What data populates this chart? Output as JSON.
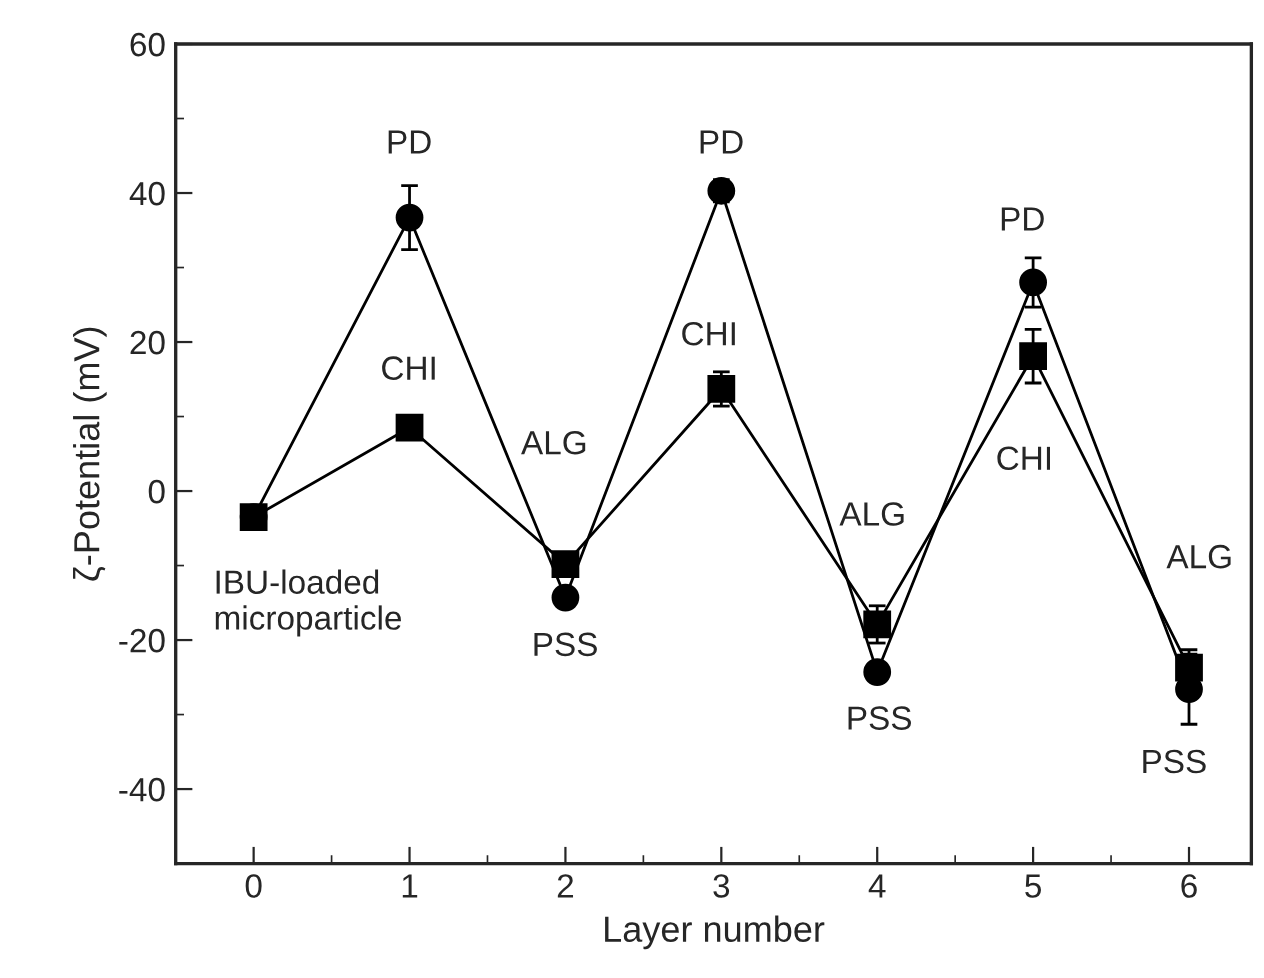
{
  "chart_data": {
    "type": "line",
    "xlabel": "Layer number",
    "ylabel": "ζ-Potential (mV)",
    "xlim": [
      -0.5,
      6.4
    ],
    "xticks": [
      0,
      1,
      2,
      3,
      4,
      5,
      6
    ],
    "ylim": [
      -50,
      60
    ],
    "yticks": [
      -40,
      -20,
      0,
      20,
      40,
      60
    ],
    "grid": false,
    "legend": false,
    "line_style": "solid",
    "series": [
      {
        "color": "#000000",
        "marker": "circle",
        "x": [
          0,
          1,
          2,
          3,
          4,
          5,
          6
        ],
        "values": [
          -3.5,
          36.7,
          -14.3,
          40.3,
          -24.3,
          28.0,
          -26.6
        ],
        "errors": [
          null,
          4.3,
          null,
          1.5,
          null,
          3.3,
          4.7
        ]
      },
      {
        "color": "#000000",
        "marker": "square",
        "x": [
          0,
          1,
          2,
          3,
          4,
          5,
          6
        ],
        "values": [
          -3.5,
          8.5,
          -9.8,
          13.7,
          -17.9,
          18.1,
          -23.7
        ],
        "errors": [
          null,
          null,
          null,
          2.3,
          2.5,
          3.6,
          2.4
        ]
      }
    ],
    "annotations": [
      "IBU-loaded\nmicroparticle",
      "PD",
      "PD",
      "PD",
      "CHI",
      "CHI",
      "CHI",
      "ALG",
      "ALG",
      "ALG",
      "PSS",
      "PSS",
      "PSS"
    ]
  }
}
